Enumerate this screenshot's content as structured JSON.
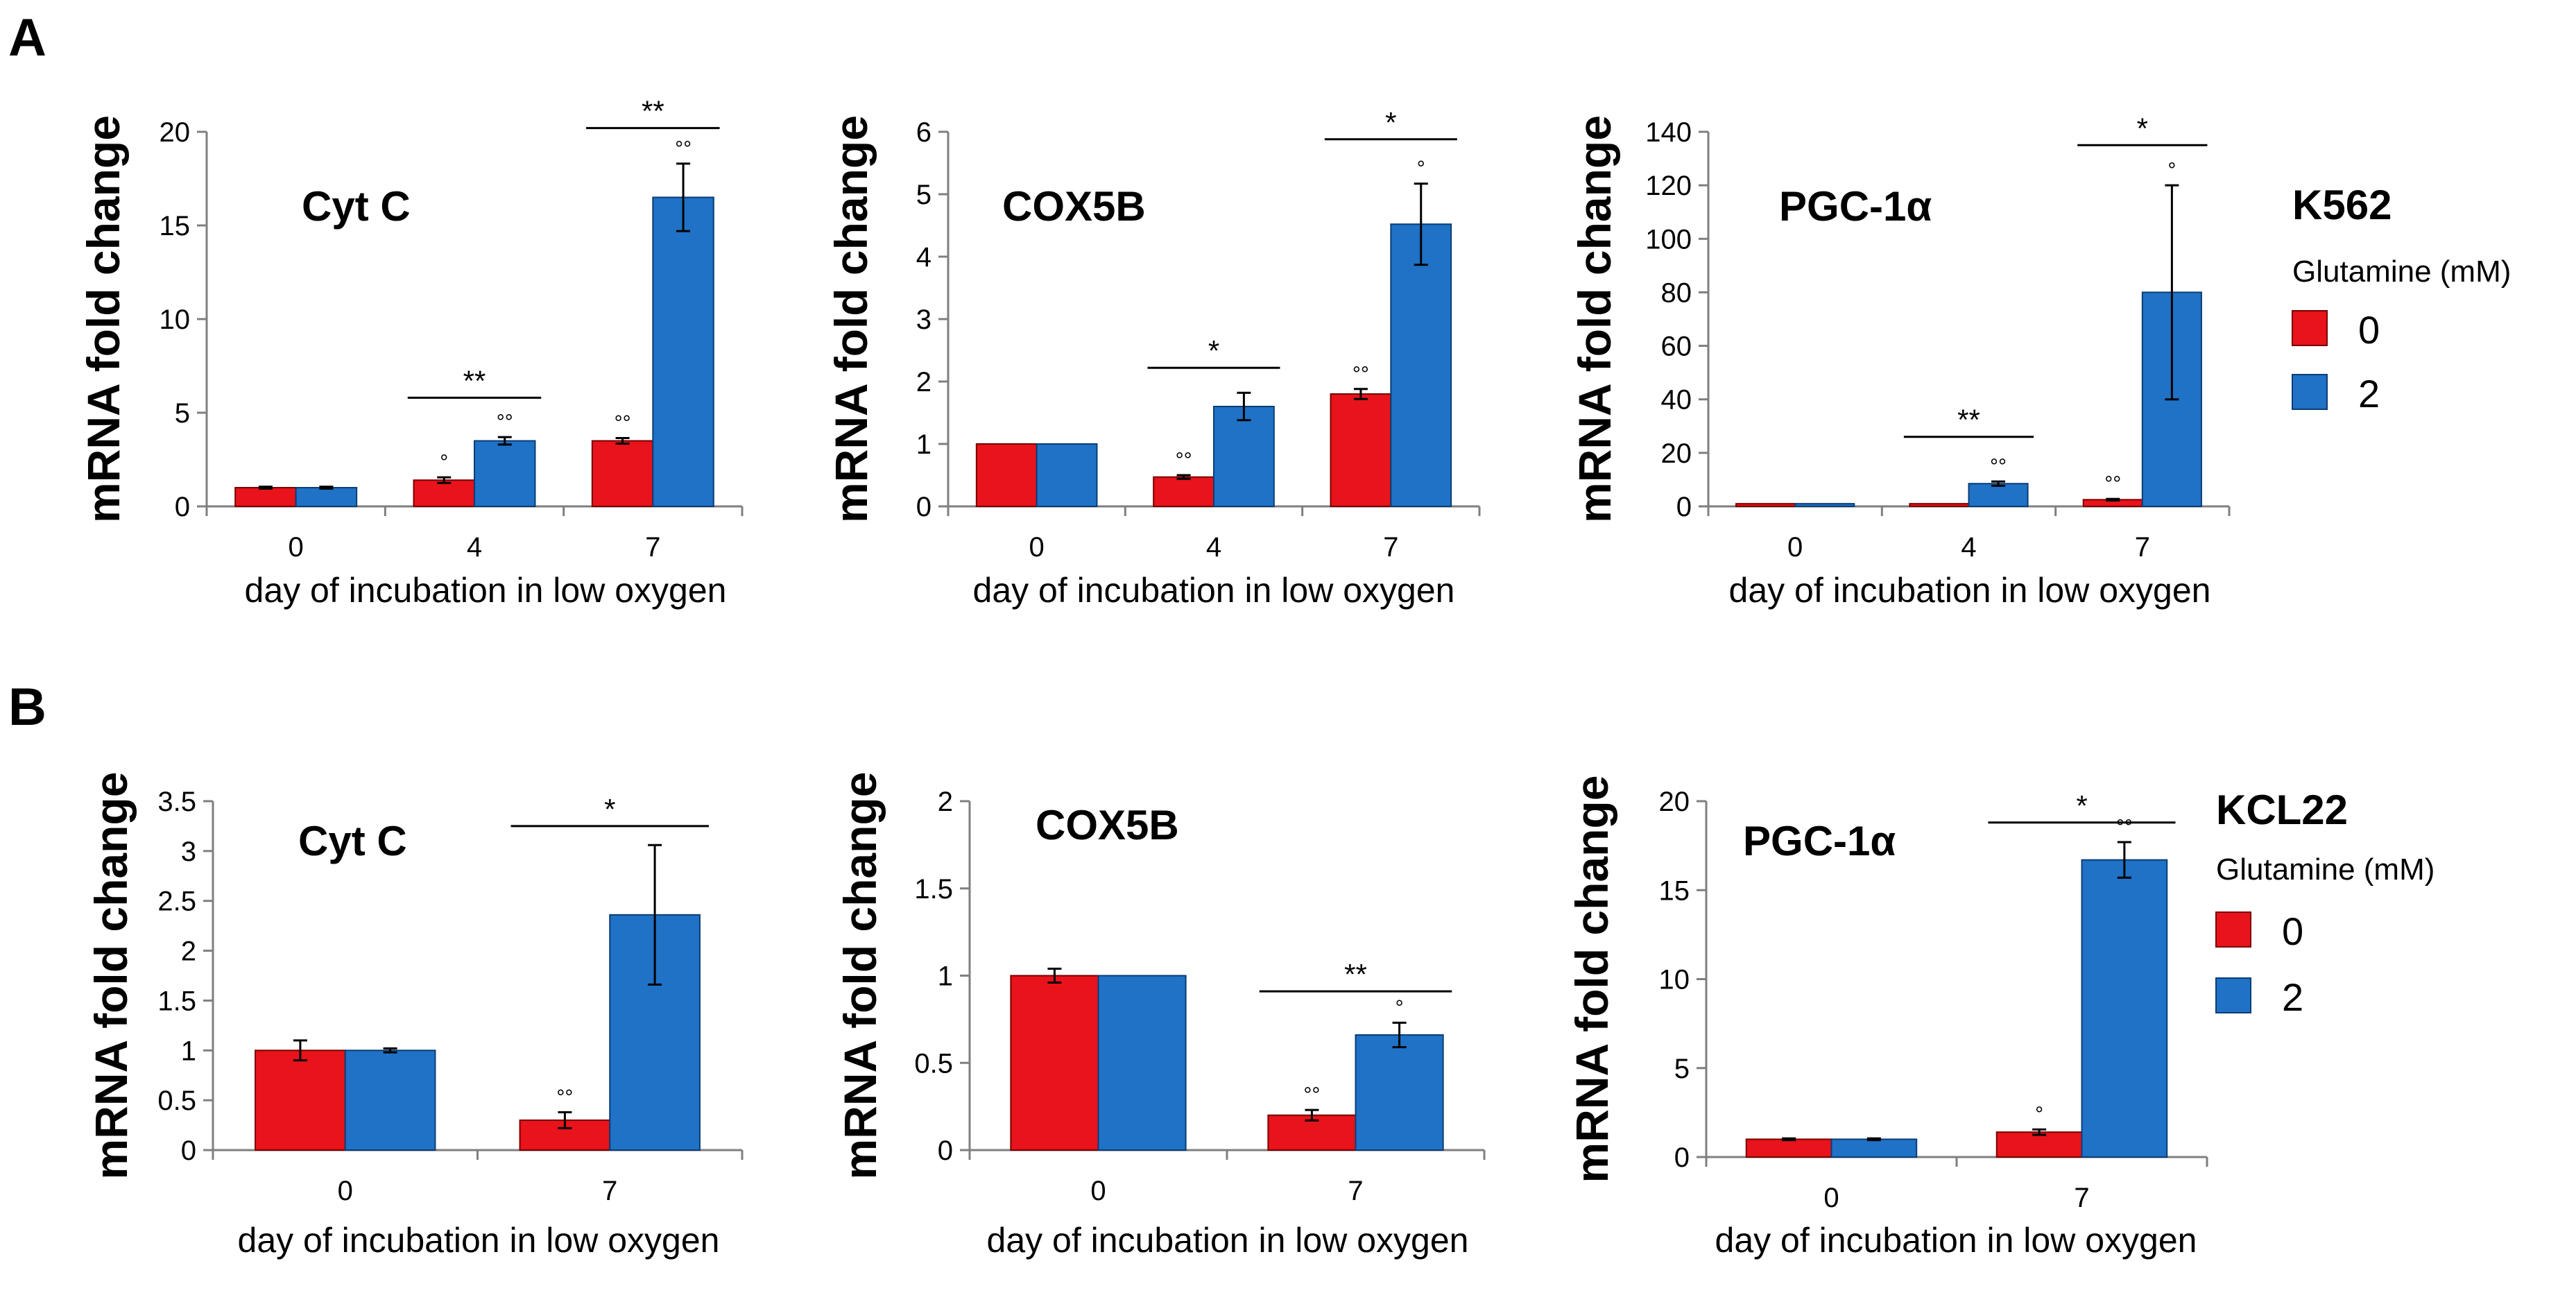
{
  "panels": [
    {
      "letter": "A",
      "cell_line": "K562"
    },
    {
      "letter": "B",
      "cell_line": "KCL22"
    }
  ],
  "legend": {
    "title": "Glutamine (mM)",
    "entries": [
      {
        "label": "0",
        "color": "#e8131b"
      },
      {
        "label": "2",
        "color": "#1f72c6"
      }
    ]
  },
  "chart_data": [
    {
      "id": "A1",
      "panel": "A",
      "type": "bar",
      "title": "Cyt C",
      "xlabel": "day of incubation in low oxygen",
      "ylabel": "mRNA fold change",
      "ylim": [
        0,
        20
      ],
      "yticks": [
        "0",
        "5",
        "10",
        "15",
        "20"
      ],
      "categories": [
        "0",
        "4",
        "7"
      ],
      "series": [
        {
          "name": "0",
          "values": [
            1.0,
            1.4,
            3.5
          ],
          "errors": [
            0.05,
            0.15,
            0.15
          ],
          "markers": [
            "",
            "°",
            "°°"
          ]
        },
        {
          "name": "2",
          "values": [
            1.0,
            3.5,
            16.5
          ],
          "errors": [
            0.05,
            0.2,
            1.8
          ],
          "markers": [
            "",
            "°°",
            "°°"
          ]
        }
      ],
      "significance": [
        {
          "category": "4",
          "label": "**",
          "y": 5.8
        },
        {
          "category": "7",
          "label": "**",
          "y": 20.2
        }
      ]
    },
    {
      "id": "A2",
      "panel": "A",
      "type": "bar",
      "title": "COX5B",
      "xlabel": "day of incubation in low oxygen",
      "ylabel": "mRNA fold change",
      "ylim": [
        0,
        6
      ],
      "yticks": [
        "0",
        "1",
        "2",
        "3",
        "4",
        "5",
        "6"
      ],
      "categories": [
        "0",
        "4",
        "7"
      ],
      "series": [
        {
          "name": "0",
          "values": [
            1.0,
            0.47,
            1.8
          ],
          "errors": [
            0.0,
            0.03,
            0.08
          ],
          "markers": [
            "",
            "°°",
            "°°"
          ]
        },
        {
          "name": "2",
          "values": [
            1.0,
            1.6,
            4.52
          ],
          "errors": [
            0.0,
            0.22,
            0.65
          ],
          "markers": [
            "",
            "",
            "°"
          ]
        }
      ],
      "significance": [
        {
          "category": "4",
          "label": "*",
          "y": 2.22
        },
        {
          "category": "7",
          "label": "*",
          "y": 5.88
        }
      ]
    },
    {
      "id": "A3",
      "panel": "A",
      "type": "bar",
      "title": "PGC-1α",
      "xlabel": "day of incubation in low oxygen",
      "ylabel": "mRNA fold change",
      "ylim": [
        0,
        140
      ],
      "yticks": [
        "0",
        "20",
        "40",
        "60",
        "80",
        "100",
        "120",
        "140"
      ],
      "categories": [
        "0",
        "4",
        "7"
      ],
      "series": [
        {
          "name": "0",
          "values": [
            1.0,
            1.0,
            2.5
          ],
          "errors": [
            0.0,
            0.0,
            0.3
          ],
          "markers": [
            "",
            "",
            "°°"
          ]
        },
        {
          "name": "2",
          "values": [
            1.0,
            8.5,
            80
          ],
          "errors": [
            0.0,
            0.8,
            40
          ],
          "markers": [
            "",
            "°°",
            "°"
          ]
        }
      ],
      "significance": [
        {
          "category": "4",
          "label": "**",
          "y": 26
        },
        {
          "category": "7",
          "label": "*",
          "y": 135
        }
      ]
    },
    {
      "id": "B1",
      "panel": "B",
      "type": "bar",
      "title": "Cyt C",
      "xlabel": "day of incubation in low oxygen",
      "ylabel": "mRNA fold change",
      "ylim": [
        0,
        3.5
      ],
      "yticks": [
        "0",
        "0.5",
        "1",
        "1.5",
        "2",
        "2.5",
        "3",
        "3.5"
      ],
      "categories": [
        "0",
        "7"
      ],
      "series": [
        {
          "name": "0",
          "values": [
            1.0,
            0.3
          ],
          "errors": [
            0.1,
            0.08
          ],
          "markers": [
            "",
            "°°"
          ]
        },
        {
          "name": "2",
          "values": [
            1.0,
            2.36
          ],
          "errors": [
            0.02,
            0.7
          ],
          "markers": [
            "",
            ""
          ]
        }
      ],
      "significance": [
        {
          "category": "7",
          "label": "*",
          "y": 3.25
        }
      ]
    },
    {
      "id": "B2",
      "panel": "B",
      "type": "bar",
      "title": "COX5B",
      "xlabel": "day of incubation in low oxygen",
      "ylabel": "mRNA fold change",
      "ylim": [
        0,
        2
      ],
      "yticks": [
        "0",
        "0.5",
        "1",
        "1.5",
        "2"
      ],
      "categories": [
        "0",
        "7"
      ],
      "series": [
        {
          "name": "0",
          "values": [
            1.0,
            0.2
          ],
          "errors": [
            0.04,
            0.03
          ],
          "markers": [
            "",
            "°°"
          ]
        },
        {
          "name": "2",
          "values": [
            1.0,
            0.66
          ],
          "errors": [
            0.0,
            0.07
          ],
          "markers": [
            "",
            "°"
          ]
        }
      ],
      "significance": [
        {
          "category": "7",
          "label": "**",
          "y": 0.91
        }
      ]
    },
    {
      "id": "B3",
      "panel": "B",
      "type": "bar",
      "title": "PGC-1α",
      "xlabel": "day of incubation in low oxygen",
      "ylabel": "mRNA fold change",
      "ylim": [
        0,
        20
      ],
      "yticks": [
        "0",
        "5",
        "10",
        "15",
        "20"
      ],
      "categories": [
        "0",
        "7"
      ],
      "series": [
        {
          "name": "0",
          "values": [
            1.0,
            1.4
          ],
          "errors": [
            0.05,
            0.15
          ],
          "markers": [
            "",
            "°"
          ]
        },
        {
          "name": "2",
          "values": [
            1.0,
            16.7
          ],
          "errors": [
            0.05,
            1.0
          ],
          "markers": [
            "",
            "°°"
          ]
        }
      ],
      "significance": [
        {
          "category": "7",
          "label": "*",
          "y": 18.8
        }
      ]
    }
  ]
}
